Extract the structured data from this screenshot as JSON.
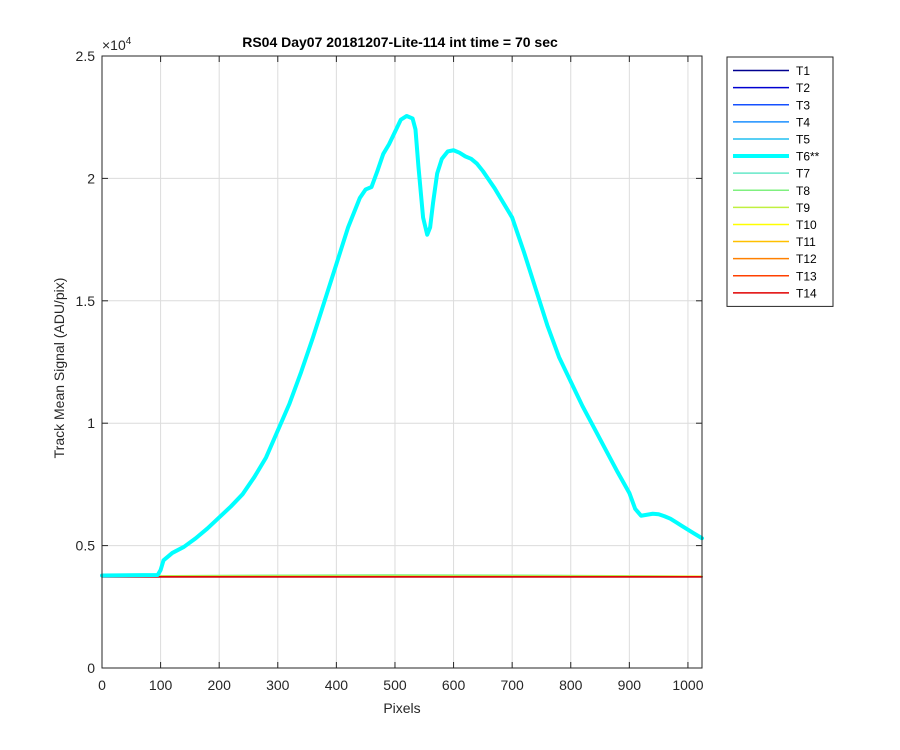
{
  "chart_data": {
    "type": "line",
    "title": "RS04 Day07 20181207-Lite-114 int time = 70 sec",
    "xlabel": "Pixels",
    "ylabel": "Track Mean Signal (ADU/pix)",
    "xlim": [
      0,
      1024
    ],
    "ylim": [
      0,
      25000
    ],
    "x_ticks": [
      0,
      100,
      200,
      300,
      400,
      500,
      600,
      700,
      800,
      900,
      1000
    ],
    "x_tick_labels": [
      "0",
      "100",
      "200",
      "300",
      "400",
      "500",
      "600",
      "700",
      "800",
      "900",
      "1000"
    ],
    "y_ticks": [
      0,
      5000,
      10000,
      15000,
      20000,
      25000
    ],
    "y_tick_labels": [
      "0",
      "0.5",
      "1",
      "1.5",
      "2",
      "2.5"
    ],
    "y_exponent_base": "×10",
    "y_exponent_power": "4",
    "grid": true,
    "legend_position": "outside-right",
    "series": [
      {
        "name": "T1",
        "color": "#00008f",
        "width": 1.5,
        "x": [
          0,
          1024
        ],
        "y": [
          3720,
          3720
        ]
      },
      {
        "name": "T2",
        "color": "#0000d0",
        "width": 1.5,
        "x": [
          0,
          1024
        ],
        "y": [
          3725,
          3725
        ]
      },
      {
        "name": "T3",
        "color": "#1550ff",
        "width": 1.5,
        "x": [
          0,
          1024
        ],
        "y": [
          3730,
          3730
        ]
      },
      {
        "name": "T4",
        "color": "#1c8fff",
        "width": 1.5,
        "x": [
          0,
          1024
        ],
        "y": [
          3735,
          3735
        ]
      },
      {
        "name": "T5",
        "color": "#20bff0",
        "width": 1.5,
        "x": [
          0,
          1024
        ],
        "y": [
          3740,
          3740
        ]
      },
      {
        "name": "T6**",
        "color": "#00ffff",
        "width": 4,
        "x": [
          0,
          95,
          100,
          105,
          120,
          140,
          160,
          180,
          200,
          220,
          240,
          260,
          280,
          300,
          320,
          340,
          360,
          380,
          400,
          420,
          440,
          450,
          460,
          470,
          480,
          490,
          500,
          510,
          520,
          530,
          535,
          540,
          548,
          555,
          560,
          565,
          572,
          580,
          590,
          600,
          610,
          620,
          630,
          640,
          650,
          660,
          670,
          680,
          700,
          720,
          740,
          760,
          780,
          800,
          820,
          840,
          860,
          880,
          900,
          910,
          920,
          930,
          940,
          950,
          960,
          970,
          980,
          990,
          1000,
          1010,
          1024
        ],
        "y": [
          3780,
          3800,
          4000,
          4400,
          4700,
          4950,
          5300,
          5700,
          6150,
          6600,
          7100,
          7800,
          8600,
          9700,
          10800,
          12100,
          13500,
          15000,
          16500,
          18000,
          19200,
          19550,
          19650,
          20300,
          21000,
          21400,
          21900,
          22400,
          22550,
          22450,
          22000,
          20500,
          18400,
          17700,
          18000,
          19000,
          20200,
          20800,
          21100,
          21150,
          21050,
          20900,
          20800,
          20600,
          20300,
          19950,
          19600,
          19200,
          18400,
          17000,
          15500,
          14000,
          12700,
          11700,
          10700,
          9800,
          8900,
          8000,
          7150,
          6500,
          6220,
          6260,
          6300,
          6280,
          6200,
          6100,
          5950,
          5800,
          5650,
          5500,
          5300
        ]
      },
      {
        "name": "T7",
        "color": "#66e8c8",
        "width": 1.5,
        "x": [
          0,
          200,
          500,
          700,
          1024
        ],
        "y": [
          3745,
          3770,
          3790,
          3780,
          3745
        ]
      },
      {
        "name": "T8",
        "color": "#7ff07f",
        "width": 1.5,
        "x": [
          0,
          200,
          500,
          700,
          1024
        ],
        "y": [
          3750,
          3780,
          3800,
          3790,
          3750
        ]
      },
      {
        "name": "T9",
        "color": "#c0f040",
        "width": 1.5,
        "x": [
          0,
          1024
        ],
        "y": [
          3745,
          3745
        ]
      },
      {
        "name": "T10",
        "color": "#ffff00",
        "width": 1.5,
        "x": [
          0,
          1024
        ],
        "y": [
          3740,
          3740
        ]
      },
      {
        "name": "T11",
        "color": "#ffc000",
        "width": 1.5,
        "x": [
          0,
          1024
        ],
        "y": [
          3735,
          3735
        ]
      },
      {
        "name": "T12",
        "color": "#ff8000",
        "width": 1.5,
        "x": [
          0,
          1024
        ],
        "y": [
          3730,
          3730
        ]
      },
      {
        "name": "T13",
        "color": "#ff4000",
        "width": 1.5,
        "x": [
          0,
          1024
        ],
        "y": [
          3725,
          3725
        ]
      },
      {
        "name": "T14",
        "color": "#e00000",
        "width": 1.5,
        "x": [
          0,
          1024
        ],
        "y": [
          3720,
          3720
        ]
      }
    ]
  }
}
